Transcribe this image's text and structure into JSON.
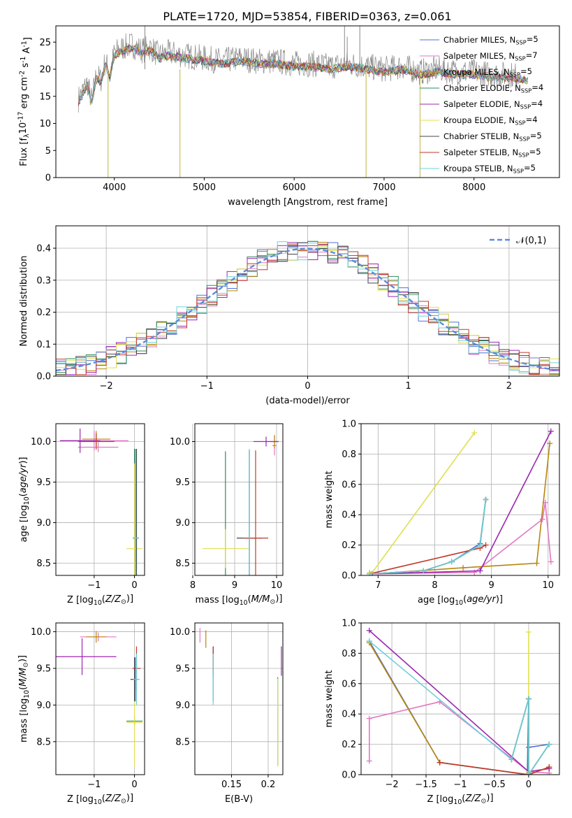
{
  "figure": {
    "title": "PLATE=1720, MJD=53854, FIBERID=0363, z=0.061"
  },
  "models": [
    {
      "name": "Chabrier MILES, N$_{SSP}$=5",
      "color": "#4c72d8"
    },
    {
      "name": "Salpeter MILES, N$_{SSP}$=7",
      "color": "#e377c2"
    },
    {
      "name": "Kroupa MILES, N$_{SSP}$=5",
      "color": "#b8860b"
    },
    {
      "name": "Chabrier ELODIE, N$_{SSP}$=4",
      "color": "#2e8b57"
    },
    {
      "name": "Salpeter ELODIE, N$_{SSP}$=4",
      "color": "#9c27b0"
    },
    {
      "name": "Kroupa ELODIE, N$_{SSP}$=4",
      "color": "#e0e050"
    },
    {
      "name": "Chabrier STELIB, N$_{SSP}$=5",
      "color": "#444444"
    },
    {
      "name": "Salpeter STELIB, N$_{SSP}$=5",
      "color": "#c0392b"
    },
    {
      "name": "Kroupa STELIB, N$_{SSP}$=5",
      "color": "#6fd0d8"
    }
  ],
  "chart_data": [
    {
      "id": "spectrum",
      "type": "line",
      "xlabel": "wavelength [Angstrom, rest frame]",
      "ylabel": "Flux [f$_\\lambda$10$^{-17}$ erg cm$^{-2}$ s$^{-1}$ A$^{-1}$]",
      "xlim": [
        3350,
        8950
      ],
      "ylim": [
        0,
        28
      ],
      "xticks": [
        4000,
        5000,
        6000,
        7000,
        8000
      ],
      "yticks": [
        0,
        5,
        10,
        15,
        20,
        25
      ],
      "grid": false,
      "legend": "upper right",
      "data_color": "#888888",
      "data_profile": [
        [
          3600,
          14.5
        ],
        [
          3650,
          16.0
        ],
        [
          3700,
          17.5
        ],
        [
          3750,
          14.0
        ],
        [
          3800,
          19.0
        ],
        [
          3850,
          18.0
        ],
        [
          3900,
          21.5
        ],
        [
          3950,
          19.0
        ],
        [
          4000,
          23.0
        ],
        [
          4100,
          24.0
        ],
        [
          4200,
          24.5
        ],
        [
          4300,
          23.5
        ],
        [
          4400,
          24.0
        ],
        [
          4500,
          22.5
        ],
        [
          4600,
          23.0
        ],
        [
          4800,
          22.5
        ],
        [
          5000,
          22.0
        ],
        [
          5200,
          21.5
        ],
        [
          5400,
          22.0
        ],
        [
          5600,
          21.5
        ],
        [
          5800,
          21.5
        ],
        [
          6000,
          21.0
        ],
        [
          6200,
          21.0
        ],
        [
          6400,
          20.5
        ],
        [
          6600,
          21.0
        ],
        [
          6800,
          20.5
        ],
        [
          7000,
          20.0
        ],
        [
          7200,
          20.5
        ],
        [
          7400,
          19.5
        ],
        [
          7600,
          20.0
        ],
        [
          7800,
          19.5
        ],
        [
          8000,
          19.5
        ],
        [
          8200,
          19.0
        ],
        [
          8400,
          19.0
        ],
        [
          8600,
          18.5
        ]
      ],
      "data_range": [
        3600,
        8500
      ],
      "model_range": [
        3600,
        8600
      ],
      "dips": [
        {
          "x": 3930,
          "y": 0.0
        },
        {
          "x": 4730,
          "y": 0.0
        },
        {
          "x": 6800,
          "y": 0.0
        },
        {
          "x": 7400,
          "y": 0.0
        }
      ],
      "spikes": [
        {
          "x": 4340,
          "y": 28.0
        },
        {
          "x": 6560,
          "y": 28.0
        },
        {
          "x": 6730,
          "y": 28.0
        },
        {
          "x": 6590,
          "y": 26.0
        }
      ]
    },
    {
      "id": "residuals",
      "type": "line",
      "xlabel": "(data-model)/error",
      "ylabel": "Normed distribution",
      "xlim": [
        -2.5,
        2.5
      ],
      "ylim": [
        0,
        0.47
      ],
      "xticks": [
        -2,
        -1,
        0,
        1,
        2
      ],
      "yticks": [
        0.0,
        0.1,
        0.2,
        0.3,
        0.4
      ],
      "grid": true,
      "legend": "upper right",
      "gauss_label": "$\\mathcal{N}(0,1)$",
      "gauss_color": "#5b8cdb",
      "bin_width": 0.1
    },
    {
      "id": "age_vs_z",
      "type": "scatter",
      "xlabel": "Z [log$_{10}$($Z/Z_\\odot$)]",
      "ylabel": "age  [log$_{10}$($age/yr$)]",
      "xlim": [
        -1.95,
        0.25
      ],
      "ylim": [
        8.35,
        10.22
      ],
      "xticks": [
        -1,
        0
      ],
      "yticks": [
        8.5,
        9.0,
        9.5,
        10.0
      ],
      "grid": true,
      "points": [
        {
          "model": 0,
          "x": 0.02,
          "y": 8.81,
          "xerr": 0.05,
          "yerr": 1.1
        },
        {
          "model": 1,
          "x": -1.0,
          "y": 10.01,
          "xerr": 0.85,
          "yerr": 0.12
        },
        {
          "model": 1,
          "x": -0.9,
          "y": 9.93,
          "xerr": 0.5,
          "yerr": 0.06
        },
        {
          "model": 2,
          "x": -0.95,
          "y": 10.03,
          "xerr": 0.35,
          "yerr": 0.1
        },
        {
          "model": 3,
          "x": 0.0,
          "y": 8.81,
          "xerr": 0.04,
          "yerr": 1.1
        },
        {
          "model": 4,
          "x": -1.35,
          "y": 10.01,
          "xerr": 0.5,
          "yerr": 0.15
        },
        {
          "model": 5,
          "x": 0.0,
          "y": 8.68,
          "xerr": 0.2,
          "yerr": 1.05
        },
        {
          "model": 6,
          "x": 0.05,
          "y": 8.81,
          "xerr": 0.05,
          "yerr": 1.1
        },
        {
          "model": 7,
          "x": -0.95,
          "y": 10.0,
          "xerr": 0.45,
          "yerr": 0.1
        },
        {
          "model": 8,
          "x": 0.03,
          "y": 8.81,
          "xerr": 0.05,
          "yerr": 1.1
        }
      ]
    },
    {
      "id": "age_vs_mass",
      "type": "scatter",
      "xlabel": "mass [log$_{10}$($M/M_\\odot$)]",
      "ylabel": "",
      "xlim": [
        8.05,
        10.15
      ],
      "ylim": [
        8.35,
        10.22
      ],
      "xticks": [
        8,
        9,
        10
      ],
      "yticks": [
        8.5,
        9.0,
        9.5,
        10.0
      ],
      "grid": true,
      "points": [
        {
          "model": 0,
          "x": 9.35,
          "y": 8.81,
          "xerr": 0.0,
          "yerr": 1.08
        },
        {
          "model": 1,
          "x": 9.95,
          "y": 9.95,
          "xerr": 0.05,
          "yerr": 0.12
        },
        {
          "model": 2,
          "x": 9.95,
          "y": 10.0,
          "xerr": 0.1,
          "yerr": 0.08
        },
        {
          "model": 3,
          "x": 8.78,
          "y": 8.68,
          "xerr": 0.0,
          "yerr": 1.2
        },
        {
          "model": 4,
          "x": 9.75,
          "y": 10.0,
          "xerr": 0.3,
          "yerr": 0.06
        },
        {
          "model": 5,
          "x": 8.78,
          "y": 8.68,
          "xerr": 0.55,
          "yerr": 0.24
        },
        {
          "model": 6,
          "x": 9.35,
          "y": 8.81,
          "xerr": 0.3,
          "yerr": 1.08
        },
        {
          "model": 7,
          "x": 9.5,
          "y": 8.81,
          "xerr": 0.3,
          "yerr": 1.08
        },
        {
          "model": 8,
          "x": 9.35,
          "y": 8.81,
          "xerr": 0.0,
          "yerr": 1.1
        }
      ]
    },
    {
      "id": "weight_vs_age",
      "type": "line",
      "xlabel": "age  [log$_{10}$($age/yr$)]",
      "ylabel": "mass weight",
      "xlim": [
        6.7,
        10.2
      ],
      "ylim": [
        0,
        1.0
      ],
      "xticks": [
        7,
        8,
        9,
        10
      ],
      "yticks": [
        0.0,
        0.2,
        0.4,
        0.6,
        0.8,
        1.0
      ],
      "grid": true,
      "series": [
        {
          "model": 0,
          "x": [
            6.85,
            7.8,
            8.3,
            8.8,
            8.9
          ],
          "y": [
            0.01,
            0.03,
            0.09,
            0.21,
            0.5
          ]
        },
        {
          "model": 1,
          "x": [
            6.9,
            8.7,
            9.9,
            9.95,
            10.05
          ],
          "y": [
            0.01,
            0.02,
            0.37,
            0.48,
            0.09
          ]
        },
        {
          "model": 2,
          "x": [
            6.9,
            8.5,
            9.8,
            10.03
          ],
          "y": [
            0.01,
            0.05,
            0.08,
            0.87
          ]
        },
        {
          "model": 3,
          "x": [
            6.85,
            7.8,
            8.3,
            8.8,
            8.9
          ],
          "y": [
            0.01,
            0.03,
            0.09,
            0.2,
            0.5
          ]
        },
        {
          "model": 4,
          "x": [
            6.9,
            8.8,
            10.05
          ],
          "y": [
            0.01,
            0.03,
            0.95
          ]
        },
        {
          "model": 5,
          "x": [
            6.85,
            6.88,
            8.7
          ],
          "y": [
            0.02,
            0.01,
            0.94
          ]
        },
        {
          "model": 6,
          "x": [
            6.85,
            7.8,
            8.3,
            8.8,
            8.9
          ],
          "y": [
            0.01,
            0.03,
            0.09,
            0.2,
            0.5
          ]
        },
        {
          "model": 7,
          "x": [
            6.85,
            8.8,
            8.9
          ],
          "y": [
            0.01,
            0.18,
            0.2
          ]
        },
        {
          "model": 8,
          "x": [
            6.85,
            7.8,
            8.3,
            8.8,
            8.9
          ],
          "y": [
            0.01,
            0.03,
            0.09,
            0.2,
            0.5
          ]
        }
      ]
    },
    {
      "id": "mass_vs_z",
      "type": "scatter",
      "xlabel": "Z [log$_{10}$($Z/Z_\\odot$)]",
      "ylabel": "mass [log$_{10}$($M/M_\\odot$)]",
      "xlim": [
        -1.95,
        0.25
      ],
      "ylim": [
        8.05,
        10.12
      ],
      "xticks": [
        -1,
        0
      ],
      "yticks": [
        8.5,
        9.0,
        9.5,
        10.0
      ],
      "grid": true,
      "points": [
        {
          "model": 0,
          "x": 0.02,
          "y": 9.35,
          "xerr": 0.05,
          "yerr": 0.3
        },
        {
          "model": 1,
          "x": -0.9,
          "y": 9.93,
          "xerr": 0.45,
          "yerr": 0.06
        },
        {
          "model": 2,
          "x": -0.95,
          "y": 9.93,
          "xerr": 0.25,
          "yerr": 0.08
        },
        {
          "model": 3,
          "x": 0.0,
          "y": 8.78,
          "xerr": 0.2,
          "yerr": 0.06
        },
        {
          "model": 4,
          "x": -1.3,
          "y": 9.66,
          "xerr": 0.85,
          "yerr": 0.25
        },
        {
          "model": 5,
          "x": 0.0,
          "y": 8.76,
          "xerr": 0.2,
          "yerr": 0.6
        },
        {
          "model": 6,
          "x": 0.0,
          "y": 9.35,
          "xerr": 0.1,
          "yerr": 0.3
        },
        {
          "model": 7,
          "x": 0.05,
          "y": 9.5,
          "xerr": 0.1,
          "yerr": 0.3
        },
        {
          "model": 8,
          "x": 0.05,
          "y": 9.35,
          "xerr": 0.08,
          "yerr": 0.35
        }
      ]
    },
    {
      "id": "mass_vs_ebv",
      "type": "scatter",
      "xlabel": "E(B-V)",
      "ylabel": "",
      "xlim": [
        0.1,
        0.22
      ],
      "ylim": [
        8.05,
        10.12
      ],
      "xticks": [
        0.15,
        0.2
      ],
      "yticks": [
        8.5,
        9.0,
        9.5,
        10.0
      ],
      "grid": true,
      "points": [
        {
          "model": 0,
          "x": 0.125,
          "y": 9.35,
          "xerr": 0.0,
          "yerr": 0.3
        },
        {
          "model": 1,
          "x": 0.107,
          "y": 9.95,
          "xerr": 0.0,
          "yerr": 0.1
        },
        {
          "model": 2,
          "x": 0.115,
          "y": 9.9,
          "xerr": 0.0,
          "yerr": 0.12
        },
        {
          "model": 3,
          "x": 0.213,
          "y": 8.78,
          "xerr": 0.0,
          "yerr": 0.6
        },
        {
          "model": 4,
          "x": 0.218,
          "y": 9.6,
          "xerr": 0.0,
          "yerr": 0.2
        },
        {
          "model": 5,
          "x": 0.213,
          "y": 8.76,
          "xerr": 0.0,
          "yerr": 0.6
        },
        {
          "model": 6,
          "x": 0.125,
          "y": 9.6,
          "xerr": 0.0,
          "yerr": 0.2
        },
        {
          "model": 7,
          "x": 0.125,
          "y": 9.6,
          "xerr": 0.0,
          "yerr": 0.2
        },
        {
          "model": 8,
          "x": 0.125,
          "y": 9.35,
          "xerr": 0.0,
          "yerr": 0.35
        }
      ]
    },
    {
      "id": "weight_vs_z",
      "type": "line",
      "xlabel": "Z [log$_{10}$($Z/Z_\\odot$)]",
      "ylabel": "mass weight",
      "xlim": [
        -2.45,
        0.45
      ],
      "ylim": [
        0,
        1.0
      ],
      "xticks": [
        -2.0,
        -1.5,
        -1.0,
        -0.5,
        0.0
      ],
      "yticks": [
        0.0,
        0.2,
        0.4,
        0.6,
        0.8,
        1.0
      ],
      "grid": true,
      "series": [
        {
          "model": 0,
          "x": [
            -2.33,
            -1.3,
            -0.02,
            0.0,
            0.0,
            0.3
          ],
          "y": [
            0.88,
            0.08,
            0.0,
            0.5,
            0.18,
            0.2
          ]
        },
        {
          "model": 1,
          "x": [
            -2.33,
            -2.33,
            -1.3,
            0.0,
            0.3,
            0.3
          ],
          "y": [
            0.09,
            0.37,
            0.48,
            0.02,
            0.01,
            0.05
          ]
        },
        {
          "model": 2,
          "x": [
            -2.33,
            -1.3,
            0.0,
            0.3
          ],
          "y": [
            0.87,
            0.08,
            0.0,
            0.05
          ]
        },
        {
          "model": 3,
          "x": [
            -0.25,
            0.0,
            0.0,
            0.3
          ],
          "y": [
            0.1,
            0.5,
            0.0,
            0.2
          ]
        },
        {
          "model": 4,
          "x": [
            -2.33,
            0.0,
            0.3
          ],
          "y": [
            0.95,
            0.02,
            0.04
          ]
        },
        {
          "model": 5,
          "x": [
            0.0,
            0.0,
            0.0
          ],
          "y": [
            0.01,
            0.94,
            0.02
          ]
        },
        {
          "model": 6,
          "x": [
            -0.25,
            0.0,
            0.0,
            0.3
          ],
          "y": [
            0.1,
            0.5,
            0.0,
            0.2
          ]
        },
        {
          "model": 7,
          "x": [
            -1.3,
            0.0,
            0.3
          ],
          "y": [
            0.08,
            0.0,
            0.05
          ]
        },
        {
          "model": 8,
          "x": [
            -2.33,
            -0.25,
            0.0,
            0.0,
            0.3
          ],
          "y": [
            0.88,
            0.1,
            0.5,
            0.0,
            0.2
          ]
        }
      ]
    }
  ]
}
